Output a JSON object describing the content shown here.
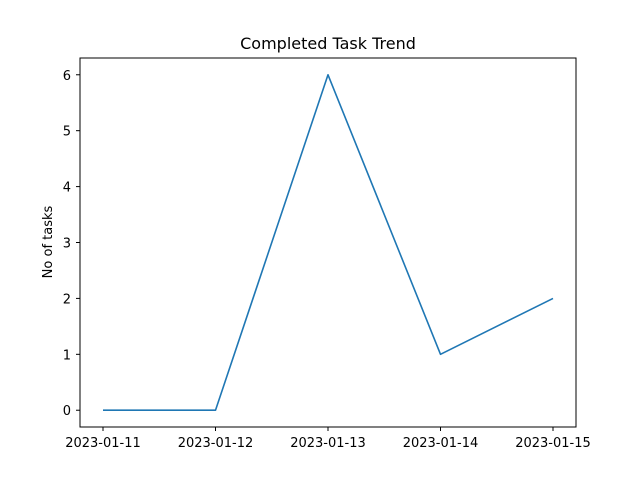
{
  "chart_data": {
    "type": "line",
    "title": "Completed Task Trend",
    "xlabel": "",
    "ylabel": "No of tasks",
    "categories": [
      "2023-01-11",
      "2023-01-12",
      "2023-01-13",
      "2023-01-14",
      "2023-01-15"
    ],
    "series": [
      {
        "values": [
          0,
          0,
          6,
          1,
          2
        ],
        "color": "#1f77b4"
      }
    ],
    "yticks": [
      "0",
      "1",
      "2",
      "3",
      "4",
      "5",
      "6"
    ],
    "ylim": [
      -0.3,
      6.3
    ],
    "grid": false,
    "legend": "none"
  }
}
